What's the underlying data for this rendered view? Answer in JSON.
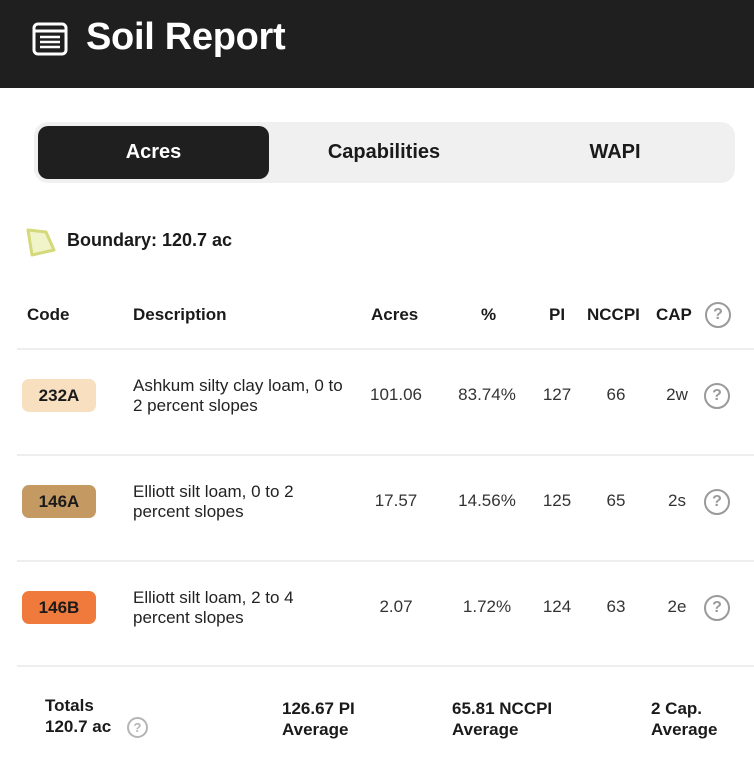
{
  "header": {
    "title": "Soil Report",
    "icon": "report-icon"
  },
  "tabs": [
    {
      "label": "Acres",
      "active": true
    },
    {
      "label": "Capabilities",
      "active": false
    },
    {
      "label": "WAPI",
      "active": false
    }
  ],
  "boundary": {
    "label": "Boundary: 120.7 ac",
    "icon": "boundary-polygon-icon",
    "color": "#d4d97a"
  },
  "table": {
    "headers": {
      "code": "Code",
      "description": "Description",
      "acres": "Acres",
      "percent": "%",
      "pi": "PI",
      "nccpi": "NCCPI",
      "cap": "CAP"
    },
    "help_symbol": "?",
    "rows": [
      {
        "code": "232A",
        "color": "#f7dfc0",
        "description": "Ashkum silty clay loam, 0 to 2 percent slopes",
        "acres": "101.06",
        "percent": "83.74%",
        "pi": "127",
        "nccpi": "66",
        "cap": "2w"
      },
      {
        "code": "146A",
        "color": "#c49a62",
        "description": "Elliott silt loam, 0 to 2 percent slopes",
        "acres": "17.57",
        "percent": "14.56%",
        "pi": "125",
        "nccpi": "65",
        "cap": "2s"
      },
      {
        "code": "146B",
        "color": "#f07a3c",
        "description": "Elliott silt loam, 2 to 4 percent slopes",
        "acres": "2.07",
        "percent": "1.72%",
        "pi": "124",
        "nccpi": "63",
        "cap": "2e"
      }
    ]
  },
  "totals": {
    "label": "Totals",
    "acres": "120.7 ac",
    "pi_value": "126.67 PI",
    "pi_sub": "Average",
    "nccpi_value": "65.81 NCCPI",
    "nccpi_sub": "Average",
    "cap_value": "2 Cap.",
    "cap_sub": "Average"
  }
}
